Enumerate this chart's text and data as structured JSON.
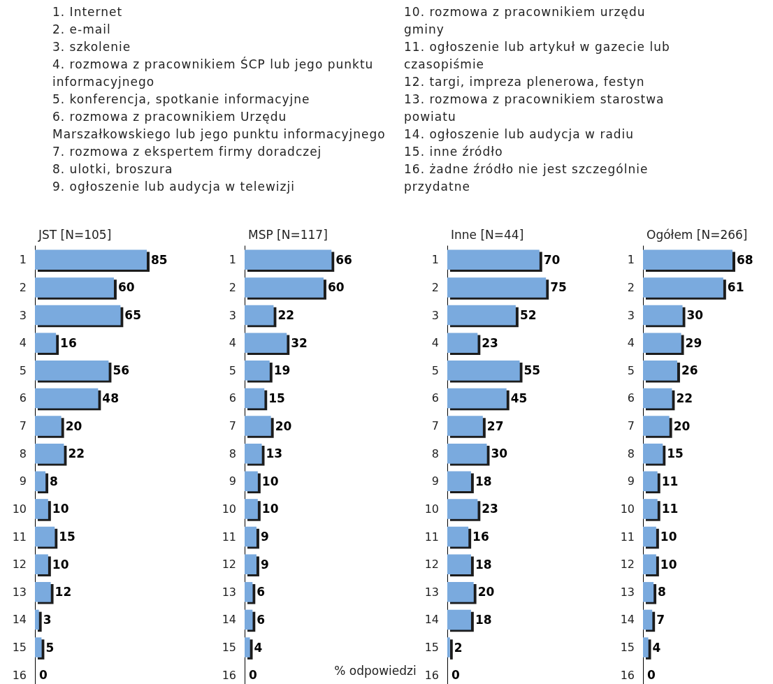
{
  "chart_data": [
    {
      "type": "bar",
      "orientation": "horizontal",
      "title": "JST [N=105]",
      "categories": [
        "1",
        "2",
        "3",
        "4",
        "5",
        "6",
        "7",
        "8",
        "9",
        "10",
        "11",
        "12",
        "13",
        "14",
        "15",
        "16"
      ],
      "values": [
        85,
        60,
        65,
        16,
        56,
        48,
        20,
        22,
        8,
        10,
        15,
        10,
        12,
        3,
        5,
        0
      ],
      "color": "#7aaade",
      "data_labels": true,
      "tick_labels": "y",
      "annotations": [
        "1. Internet",
        "2. e-mail",
        "3. szkolenie",
        "4. rozmowa z pracownikiem ŚCP lub jego punktu informacyjnego",
        "5. konferencja, spotkanie informacyjne",
        "6. rozmowa z pracownikiem Urzędu Marszałkowskiego lub jego punktu informacyjnego",
        "7. rozmowa z ekspertem firmy doradczej",
        "8. ulotki, broszura",
        "9. ogłoszenie lub audycja w telewizji",
        "10. rozmowa z pracownikiem urzędu gminy",
        "11. ogłoszenie lub artykuł w gazecie lub czasopiśmie",
        "12. targi, impreza plenerowa, festyn",
        "13. rozmowa z pracownikiem starostwa powiatu",
        "14. ogłoszenie lub audycja w radiu",
        "15. inne źródło",
        "16. żadne źródło nie jest szczególnie przydatne"
      ]
    },
    {
      "type": "bar",
      "orientation": "horizontal",
      "title": "MSP [N=117]",
      "categories": [
        "1",
        "2",
        "3",
        "4",
        "5",
        "6",
        "7",
        "8",
        "9",
        "10",
        "11",
        "12",
        "13",
        "14",
        "15",
        "16"
      ],
      "values": [
        66,
        60,
        22,
        32,
        19,
        15,
        20,
        13,
        10,
        10,
        9,
        9,
        6,
        6,
        4,
        0
      ],
      "color": "#7aaade",
      "data_labels": true,
      "tick_labels": "y",
      "xlabel": "% odpowiedzi"
    },
    {
      "type": "bar",
      "orientation": "horizontal",
      "title": "Inne [N=44]",
      "categories": [
        "1",
        "2",
        "3",
        "4",
        "5",
        "6",
        "7",
        "8",
        "9",
        "10",
        "11",
        "12",
        "13",
        "14",
        "15",
        "16"
      ],
      "values": [
        70,
        75,
        52,
        23,
        55,
        45,
        27,
        30,
        18,
        23,
        16,
        18,
        20,
        18,
        2,
        0
      ],
      "color": "#7aaade",
      "data_labels": true,
      "tick_labels": "y"
    },
    {
      "type": "bar",
      "orientation": "horizontal",
      "title": "Ogółem [N=266]",
      "categories": [
        "1",
        "2",
        "3",
        "4",
        "5",
        "6",
        "7",
        "8",
        "9",
        "10",
        "11",
        "12",
        "13",
        "14",
        "15",
        "16"
      ],
      "values": [
        68,
        61,
        30,
        29,
        26,
        22,
        20,
        15,
        11,
        11,
        10,
        10,
        8,
        7,
        4,
        0
      ],
      "color": "#7aaade",
      "data_labels": true,
      "tick_labels": "y"
    }
  ]
}
